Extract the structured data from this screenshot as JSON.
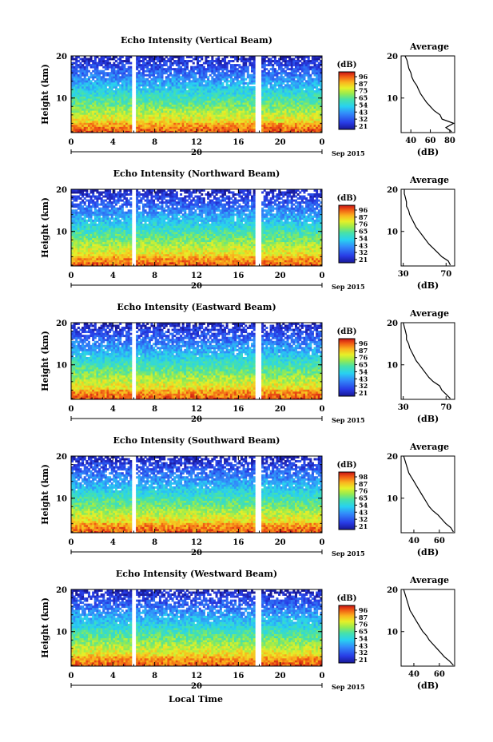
{
  "figure": {
    "xlabel": "Local Time",
    "day_label": "20",
    "date_label": "Sep 2015"
  },
  "chart_data": [
    {
      "type": "heatmap",
      "title": "Echo Intensity (Vertical Beam)",
      "ylabel": "Height (km)",
      "xlabel": "Local Time",
      "xlim": [
        0,
        24
      ],
      "ylim": [
        1.8,
        20
      ],
      "xticks": [
        "0",
        "4",
        "8",
        "12",
        "16",
        "20",
        "0"
      ],
      "yticks": [
        "10",
        "20"
      ],
      "colorbar_label": "(dB)",
      "colorbar_ticks": [
        "96",
        "87",
        "75",
        "65",
        "54",
        "43",
        "32",
        "21"
      ],
      "gaps": [
        [
          5.7,
          6.2
        ],
        [
          17.6,
          18.1
        ]
      ],
      "profile": {
        "title": "Average",
        "xlabel": "(dB)",
        "xticks": [
          "40",
          "60",
          "80"
        ],
        "xlim": [
          30,
          85
        ],
        "heights": [
          2,
          3,
          4,
          5,
          6,
          7,
          8,
          9,
          10,
          11,
          12,
          13,
          14,
          15,
          16,
          17,
          18,
          19,
          20
        ],
        "values": [
          82,
          76,
          84,
          72,
          70,
          64,
          60,
          56,
          53,
          50,
          48,
          46,
          43,
          41,
          40,
          38,
          37,
          36,
          34
        ]
      }
    },
    {
      "type": "heatmap",
      "title": "Echo Intensity (Northward Beam)",
      "ylabel": "Height (km)",
      "xlabel": "Local Time",
      "xlim": [
        0,
        24
      ],
      "ylim": [
        1.8,
        20
      ],
      "xticks": [
        "0",
        "4",
        "8",
        "12",
        "16",
        "20",
        "0"
      ],
      "yticks": [
        "10",
        "20"
      ],
      "colorbar_label": "(dB)",
      "colorbar_ticks": [
        "96",
        "87",
        "76",
        "65",
        "54",
        "43",
        "32",
        "21"
      ],
      "gaps": [
        [
          5.7,
          6.2
        ],
        [
          17.6,
          18.1
        ]
      ],
      "profile": {
        "title": "Average",
        "xlabel": "(dB)",
        "xticks": [
          "30",
          "70"
        ],
        "xlim": [
          28,
          78
        ],
        "heights": [
          2,
          3,
          4,
          5,
          6,
          7,
          8,
          9,
          10,
          11,
          12,
          13,
          14,
          15,
          16,
          17,
          18,
          19,
          20
        ],
        "values": [
          74,
          72,
          66,
          62,
          58,
          54,
          51,
          48,
          45,
          42,
          40,
          38,
          36,
          35,
          33,
          33,
          32,
          31,
          31
        ]
      }
    },
    {
      "type": "heatmap",
      "title": "Echo Intensity (Eastward Beam)",
      "ylabel": "Height (km)",
      "xlabel": "Local Time",
      "xlim": [
        0,
        24
      ],
      "ylim": [
        1.8,
        20
      ],
      "xticks": [
        "0",
        "4",
        "8",
        "12",
        "16",
        "20",
        "0"
      ],
      "yticks": [
        "10",
        "20"
      ],
      "colorbar_label": "(dB)",
      "colorbar_ticks": [
        "96",
        "87",
        "76",
        "65",
        "54",
        "43",
        "32",
        "21"
      ],
      "gaps": [
        [
          5.7,
          6.2
        ],
        [
          17.6,
          18.1
        ]
      ],
      "profile": {
        "title": "Average",
        "xlabel": "(dB)",
        "xticks": [
          "30",
          "70"
        ],
        "xlim": [
          28,
          78
        ],
        "heights": [
          2,
          3,
          4,
          5,
          6,
          7,
          8,
          9,
          10,
          11,
          12,
          13,
          14,
          15,
          16,
          17,
          18,
          19,
          20
        ],
        "values": [
          74,
          70,
          66,
          64,
          58,
          54,
          51,
          48,
          45,
          42,
          40,
          38,
          36,
          35,
          33,
          33,
          32,
          31,
          30
        ]
      }
    },
    {
      "type": "heatmap",
      "title": "Echo Intensity (Southward Beam)",
      "ylabel": "Height (km)",
      "xlabel": "Local Time",
      "xlim": [
        0,
        24
      ],
      "ylim": [
        1.8,
        20
      ],
      "xticks": [
        "0",
        "4",
        "8",
        "12",
        "16",
        "20",
        "0"
      ],
      "yticks": [
        "10",
        "20"
      ],
      "colorbar_label": "(dB)",
      "colorbar_ticks": [
        "98",
        "87",
        "76",
        "65",
        "54",
        "43",
        "32",
        "21"
      ],
      "gaps": [
        [
          5.7,
          6.2
        ],
        [
          17.6,
          18.1
        ]
      ],
      "profile": {
        "title": "Average",
        "xlabel": "(dB)",
        "xticks": [
          "40",
          "60"
        ],
        "xlim": [
          30,
          72
        ],
        "heights": [
          2,
          3,
          4,
          5,
          6,
          7,
          8,
          9,
          10,
          11,
          12,
          13,
          14,
          15,
          16,
          17,
          18,
          19,
          20
        ],
        "values": [
          71,
          69,
          65,
          62,
          59,
          55,
          52,
          50,
          48,
          46,
          44,
          42,
          40,
          38,
          36,
          35,
          34,
          33,
          32
        ]
      }
    },
    {
      "type": "heatmap",
      "title": "Echo Intensity (Westward Beam)",
      "ylabel": "Height (km)",
      "xlabel": "Local Time",
      "xlim": [
        0,
        24
      ],
      "ylim": [
        1.8,
        20
      ],
      "xticks": [
        "0",
        "4",
        "8",
        "12",
        "16",
        "20",
        "0"
      ],
      "yticks": [
        "10",
        "20"
      ],
      "colorbar_label": "(dB)",
      "colorbar_ticks": [
        "96",
        "87",
        "76",
        "65",
        "54",
        "43",
        "32",
        "21"
      ],
      "gaps": [
        [
          5.7,
          6.2
        ],
        [
          17.6,
          18.1
        ]
      ],
      "profile": {
        "title": "Average",
        "xlabel": "(dB)",
        "xticks": [
          "40",
          "60"
        ],
        "xlim": [
          30,
          72
        ],
        "heights": [
          2,
          3,
          4,
          5,
          6,
          7,
          8,
          9,
          10,
          11,
          12,
          13,
          14,
          15,
          16,
          17,
          18,
          19,
          20
        ],
        "values": [
          71,
          68,
          64,
          61,
          58,
          55,
          52,
          50,
          47,
          45,
          43,
          41,
          39,
          37,
          36,
          35,
          34,
          33,
          32
        ]
      }
    }
  ]
}
